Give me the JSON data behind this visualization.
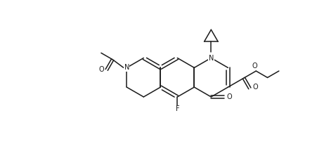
{
  "figsize": [
    4.51,
    2.25
  ],
  "dpi": 100,
  "background_color": "#ffffff",
  "line_color": "#1a1a1a",
  "label_color": "#1a1a1a",
  "xlim": [
    0,
    10
  ],
  "ylim": [
    0,
    5
  ]
}
